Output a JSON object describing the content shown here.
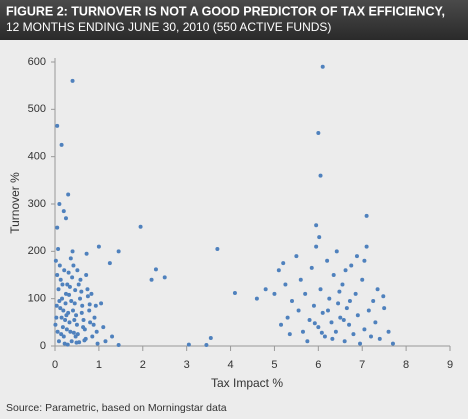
{
  "chart_data": {
    "type": "scatter",
    "title": "FIGURE 2: TURNOVER IS NOT A GOOD PREDICTOR OF TAX EFFICIENCY,",
    "subtitle": "12 MONTHS ENDING JUNE 30, 2010 (550 ACTIVE FUNDS)",
    "x_label": "Tax Impact %",
    "y_label": "Turnover %",
    "source": "Source: Parametric, based on Morningstar data",
    "color": "#4f81bd",
    "grid": false,
    "xlim": [
      0,
      9
    ],
    "ylim": [
      0,
      600
    ],
    "xticks": [
      0,
      1,
      2,
      3,
      4,
      5,
      6,
      7,
      8,
      9
    ],
    "yticks": [
      0,
      100,
      200,
      300,
      400,
      500,
      600
    ],
    "x": [
      0.05,
      0.15,
      0.4,
      0.1,
      0.2,
      0.3,
      0.05,
      0.25,
      6.0,
      6.1,
      6.05,
      5.95,
      7.1,
      1.95,
      2.2,
      2.3,
      2.5,
      3.7,
      4.1,
      3.05,
      3.55,
      3.45,
      1.45,
      1.45,
      0.02,
      0.05,
      0.08,
      0.1,
      0.12,
      0.15,
      0.18,
      0.2,
      0.22,
      0.25,
      0.28,
      0.3,
      0.33,
      0.35,
      0.38,
      0.4,
      0.42,
      0.45,
      0.48,
      0.5,
      0.52,
      0.55,
      0.58,
      0.6,
      0.62,
      0.65,
      0.68,
      0.7,
      0.72,
      0.75,
      0.78,
      0.8,
      0.85,
      0.9,
      0.95,
      1.0,
      1.05,
      1.1,
      1.15,
      1.25,
      1.3,
      0.03,
      0.06,
      0.09,
      0.13,
      0.16,
      0.19,
      0.23,
      0.27,
      0.31,
      0.34,
      0.37,
      0.41,
      0.44,
      0.47,
      0.51,
      0.54,
      0.57,
      0.61,
      0.64,
      0.67,
      0.71,
      0.74,
      0.79,
      0.83,
      0.88,
      0.93,
      0.97,
      0.01,
      0.04,
      0.07,
      0.11,
      0.14,
      0.17,
      0.21,
      0.24,
      0.26,
      0.29,
      0.32,
      0.36,
      0.39,
      0.43,
      0.46,
      0.49,
      5.0,
      5.1,
      5.15,
      5.2,
      5.25,
      5.3,
      5.35,
      5.4,
      5.5,
      5.55,
      5.6,
      5.65,
      5.7,
      5.75,
      5.8,
      5.85,
      5.9,
      5.95,
      6.0,
      6.05,
      6.1,
      6.15,
      6.2,
      6.25,
      6.3,
      6.35,
      6.4,
      6.45,
      6.5,
      6.55,
      6.6,
      6.65,
      6.7,
      6.75,
      6.8,
      6.85,
      6.9,
      6.95,
      7.0,
      7.05,
      7.1,
      7.15,
      7.2,
      7.25,
      7.3,
      7.35,
      7.4,
      7.5,
      7.6,
      7.7,
      4.8,
      4.6,
      6.02,
      6.32,
      6.48,
      6.58,
      6.72,
      6.08,
      6.22,
      5.92,
      6.62,
      6.42,
      6.88,
      7.05,
      7.48
    ],
    "values": [
      465,
      425,
      560,
      300,
      285,
      320,
      250,
      270,
      450,
      590,
      360,
      255,
      275,
      252,
      140,
      162,
      145,
      205,
      112,
      3,
      17,
      2,
      200,
      2,
      180,
      150,
      120,
      95,
      80,
      60,
      40,
      20,
      5,
      110,
      130,
      70,
      50,
      30,
      10,
      200,
      170,
      90,
      65,
      45,
      25,
      8,
      140,
      115,
      85,
      55,
      35,
      15,
      195,
      105,
      75,
      50,
      20,
      60,
      30,
      210,
      90,
      40,
      10,
      175,
      20,
      60,
      30,
      10,
      140,
      100,
      75,
      55,
      35,
      155,
      125,
      95,
      75,
      55,
      20,
      160,
      130,
      100,
      70,
      40,
      12,
      150,
      120,
      88,
      110,
      45,
      85,
      5,
      45,
      85,
      205,
      170,
      25,
      130,
      160,
      90,
      65,
      3,
      108,
      185,
      145,
      28,
      118,
      7,
      110,
      160,
      45,
      175,
      130,
      60,
      25,
      95,
      190,
      75,
      140,
      30,
      110,
      10,
      55,
      165,
      85,
      210,
      40,
      120,
      70,
      20,
      180,
      100,
      50,
      150,
      30,
      90,
      60,
      130,
      10,
      80,
      45,
      170,
      25,
      110,
      65,
      5,
      140,
      35,
      210,
      75,
      20,
      95,
      50,
      120,
      15,
      80,
      30,
      5,
      120,
      100,
      230,
      15,
      115,
      55,
      95,
      28,
      75,
      48,
      160,
      200,
      190,
      180,
      105
    ]
  }
}
